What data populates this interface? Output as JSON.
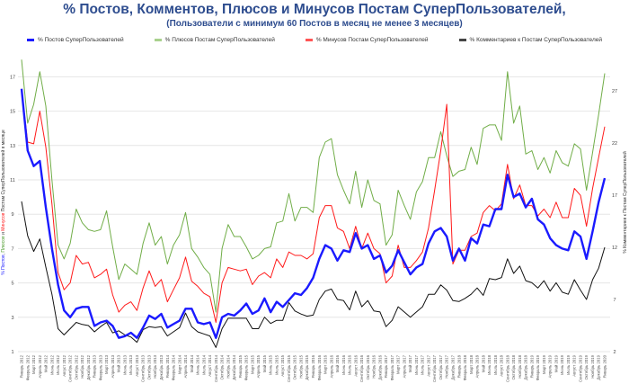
{
  "chart_data": {
    "type": "line",
    "title": "% Постов, Комментов, Плюсов и Минусов Постам СуперПользователей,",
    "subtitle": "(Пользователи с минимум 60 Постов в месяц не менее 3 месяцев)",
    "ylabel_left_parts": [
      "% Постов",
      ", ",
      "Плюсов",
      " и ",
      "Минусов",
      " Постам СуперПользователей в месяце"
    ],
    "ylabel_right": "% Комментариев к Постам СуперПользователей",
    "y_left": {
      "range": [
        1,
        18
      ],
      "ticks": [
        "1",
        "3",
        "5",
        "7",
        "9",
        "11",
        "13",
        "15",
        "17"
      ]
    },
    "y_right": {
      "range": [
        2,
        30
      ],
      "ticks": [
        "2",
        "7",
        "12",
        "17",
        "22",
        "27"
      ]
    },
    "grid": true,
    "legend_position": "top",
    "categories": [
      "Январь 2012",
      "Февраль 2012",
      "Март 2012",
      "Апрель 2012",
      "Май 2012",
      "Июнь 2012",
      "Июль 2012",
      "Август 2012",
      "Сентябрь 2012",
      "Октябрь 2012",
      "Ноябрь 2012",
      "Декабрь 2012",
      "Январь 2013",
      "Февраль 2013",
      "Март 2013",
      "Апрель 2013",
      "Май 2013",
      "Июнь 2013",
      "Июль 2013",
      "Август 2013",
      "Сентябрь 2013",
      "Октябрь 2013",
      "Ноябрь 2013",
      "Декабрь 2013",
      "Январь 2014",
      "Февраль 2014",
      "Март 2014",
      "Апрель 2014",
      "Май 2014",
      "Июнь 2014",
      "Июль 2014",
      "Август 2014",
      "Сентябрь 2014",
      "Октябрь 2014",
      "Ноябрь 2014",
      "Декабрь 2014",
      "Январь 2015",
      "Февраль 2015",
      "Март 2015",
      "Апрель 2015",
      "Май 2015",
      "Июнь 2015",
      "Июль 2015",
      "Август 2015",
      "Сентябрь 2015",
      "Октябрь 2015",
      "Ноябрь 2015",
      "Декабрь 2015",
      "Январь 2016",
      "Февраль 2016",
      "Март 2016",
      "Апрель 2016",
      "Май 2016",
      "Июнь 2016",
      "Июль 2016",
      "Август 2016",
      "Сентябрь 2016",
      "Октябрь 2016",
      "Ноябрь 2016",
      "Декабрь 2016",
      "Январь 2017",
      "Февраль 2017",
      "Март 2017",
      "Апрель 2017",
      "Май 2017",
      "Июнь 2017",
      "Июль 2017",
      "Август 2017",
      "Сентябрь 2017",
      "Октябрь 2017",
      "Ноябрь 2017",
      "Декабрь 2017",
      "Январь 2018",
      "Февраль 2018",
      "Март 2018",
      "Апрель 2018",
      "Май 2018",
      "Июнь 2018",
      "Июль 2018",
      "Август 2018",
      "Сентябрь 2018",
      "Октябрь 2018",
      "Ноябрь 2018",
      "Декабрь 2018",
      "Январь 2019",
      "Февраль 2019",
      "Март 2019",
      "Апрель 2019",
      "Май 2019",
      "Июнь 2019",
      "Июль 2019",
      "Август 2019",
      "Сентябрь 2019",
      "Октябрь 2019",
      "Ноябрь 2019",
      "Декабрь 2019",
      "Январь 2020"
    ],
    "series": [
      {
        "name": "% Постов СуперПользователей",
        "color": "#1a1aff",
        "axis": "left",
        "width": 2.4,
        "values": [
          16.3,
          12.7,
          11.8,
          12.1,
          9.4,
          7.0,
          4.9,
          3.4,
          3.0,
          3.5,
          3.6,
          3.6,
          2.5,
          2.7,
          2.8,
          2.5,
          1.8,
          1.9,
          2.1,
          1.8,
          2.4,
          3.1,
          2.9,
          3.2,
          2.4,
          2.6,
          2.8,
          3.5,
          3.5,
          2.7,
          2.6,
          2.7,
          1.8,
          3.0,
          3.2,
          3.1,
          3.4,
          3.8,
          3.2,
          3.4,
          4.1,
          3.3,
          3.9,
          3.6,
          4.0,
          4.4,
          4.3,
          4.7,
          5.3,
          6.4,
          7.2,
          7.0,
          6.3,
          6.9,
          6.8,
          7.9,
          7.0,
          7.2,
          6.4,
          6.6,
          5.6,
          6.0,
          6.9,
          6.2,
          5.5,
          5.9,
          6.1,
          7.3,
          8.0,
          8.2,
          7.7,
          6.3,
          7.0,
          6.3,
          7.6,
          7.3,
          8.4,
          8.3,
          9.3,
          9.3,
          11.3,
          10.0,
          10.2,
          9.4,
          9.9,
          8.7,
          8.4,
          7.6,
          7.2,
          7.0,
          6.9,
          8.0,
          7.7,
          6.4,
          8.0,
          9.7,
          11.1
        ]
      },
      {
        "name": "% Плюсов Постам СуперПользователей",
        "color": "#70ad47",
        "axis": "left",
        "width": 1,
        "values": [
          18.0,
          14.3,
          15.4,
          17.3,
          15.3,
          11.0,
          7.2,
          6.4,
          7.3,
          9.3,
          8.5,
          8.1,
          8.0,
          8.1,
          9.2,
          7.1,
          5.2,
          6.1,
          5.8,
          5.5,
          7.3,
          8.5,
          7.2,
          7.7,
          6.1,
          7.2,
          7.8,
          9.1,
          7.0,
          6.5,
          5.9,
          5.5,
          3.3,
          7.0,
          8.4,
          7.7,
          7.7,
          7.1,
          6.4,
          6.6,
          7.0,
          7.1,
          8.5,
          8.6,
          10.2,
          8.6,
          9.4,
          9.4,
          9.1,
          12.3,
          13.2,
          13.4,
          11.3,
          10.4,
          9.6,
          11.5,
          9.4,
          11.0,
          9.8,
          9.6,
          7.2,
          7.8,
          10.4,
          9.5,
          8.7,
          10.3,
          10.9,
          12.3,
          12.3,
          13.8,
          12.4,
          11.2,
          11.5,
          11.6,
          12.9,
          11.9,
          14.0,
          14.2,
          14.2,
          13.3,
          17.3,
          14.3,
          15.3,
          12.5,
          12.7,
          11.6,
          12.3,
          11.4,
          12.7,
          12.0,
          11.8,
          13.1,
          12.8,
          10.4,
          12.6,
          14.8,
          17.2
        ]
      },
      {
        "name": "% Минусов Постам СуперПользователей",
        "color": "#ff1a1a",
        "axis": "left",
        "width": 1,
        "values": [
          16.3,
          13.2,
          13.1,
          15.0,
          12.9,
          9.6,
          5.6,
          4.6,
          5.0,
          6.6,
          6.1,
          6.2,
          5.3,
          5.5,
          5.8,
          4.3,
          3.3,
          3.7,
          3.9,
          3.4,
          4.7,
          5.7,
          4.8,
          5.2,
          3.9,
          4.6,
          5.3,
          6.5,
          5.1,
          4.8,
          4.4,
          4.2,
          2.7,
          5.0,
          5.9,
          5.8,
          5.7,
          5.8,
          4.9,
          5.4,
          5.6,
          5.3,
          6.4,
          5.9,
          6.8,
          6.6,
          6.6,
          6.4,
          6.7,
          8.8,
          9.5,
          9.5,
          8.2,
          8.0,
          7.0,
          8.3,
          7.0,
          7.9,
          7.0,
          6.7,
          5.0,
          5.4,
          7.2,
          5.9,
          5.9,
          6.3,
          6.8,
          8.2,
          10.4,
          12.7,
          15.4,
          6.1,
          6.9,
          6.9,
          7.7,
          7.9,
          9.1,
          9.5,
          9.2,
          9.6,
          11.9,
          9.9,
          10.7,
          9.5,
          9.5,
          8.9,
          9.3,
          8.8,
          9.7,
          8.8,
          8.8,
          10.5,
          10.1,
          8.3,
          10.5,
          12.3,
          14.1
        ]
      },
      {
        "name": "% Комментариев к Постам СуперПользователей",
        "color": "#111111",
        "axis": "right",
        "width": 1,
        "values": [
          16.4,
          13.1,
          11.6,
          12.8,
          10.1,
          7.5,
          4.2,
          3.6,
          4.2,
          4.8,
          4.6,
          4.5,
          3.9,
          4.4,
          4.8,
          3.8,
          4.0,
          3.6,
          3.4,
          2.9,
          4.1,
          4.4,
          4.3,
          4.4,
          3.5,
          3.9,
          4.3,
          5.7,
          4.4,
          3.9,
          3.7,
          3.5,
          2.4,
          4.2,
          5.2,
          5.2,
          5.2,
          5.2,
          4.2,
          4.2,
          5.3,
          4.7,
          5.0,
          5.0,
          6.7,
          5.9,
          5.6,
          5.4,
          5.5,
          7.0,
          7.8,
          8.0,
          7.0,
          6.9,
          6.0,
          7.8,
          6.3,
          6.9,
          5.9,
          5.8,
          4.4,
          5.0,
          6.3,
          5.8,
          5.3,
          5.8,
          6.3,
          7.5,
          7.5,
          8.4,
          7.9,
          6.9,
          6.8,
          7.1,
          7.5,
          8.1,
          7.4,
          9.0,
          8.9,
          9.1,
          10.9,
          9.5,
          10.2,
          8.8,
          8.6,
          8.1,
          8.8,
          7.8,
          8.6,
          7.7,
          7.5,
          8.9,
          7.9,
          7.0,
          8.9,
          10.0,
          12.0
        ]
      }
    ]
  }
}
